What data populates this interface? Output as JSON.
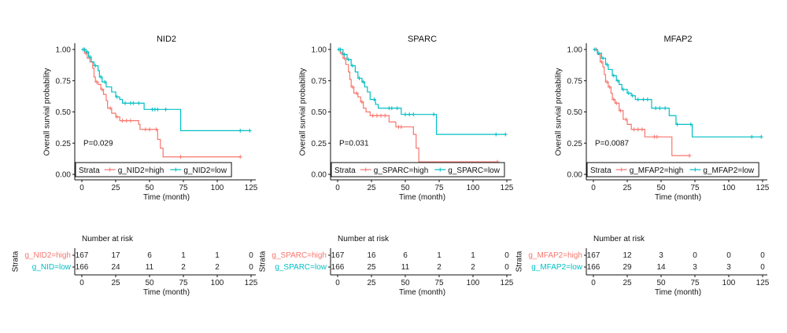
{
  "colors": {
    "high": "#F8766D",
    "low": "#00BFC4"
  },
  "chart_data": [
    {
      "type": "line",
      "subtype": "kaplan-meier",
      "title": "NID2",
      "xlabel": "Time (month)",
      "ylabel": "Overall survial probability",
      "xlim": [
        0,
        125
      ],
      "ylim": [
        0,
        1
      ],
      "xticks": [
        "0",
        "25",
        "50",
        "75",
        "100",
        "125"
      ],
      "yticks": [
        "0.00",
        "0.25",
        "0.50",
        "0.75",
        "1.00"
      ],
      "pvalue": "P=0.029",
      "legend": {
        "title": "Strata",
        "position": "bottom-left"
      },
      "series": [
        {
          "name": "g_NID2=high",
          "color_key": "high",
          "steps": [
            [
              0,
              1
            ],
            [
              2,
              0.97
            ],
            [
              4,
              0.93
            ],
            [
              6,
              0.9
            ],
            [
              8,
              0.85
            ],
            [
              9,
              0.78
            ],
            [
              10,
              0.74
            ],
            [
              12,
              0.72
            ],
            [
              14,
              0.68
            ],
            [
              16,
              0.64
            ],
            [
              18,
              0.59
            ],
            [
              19,
              0.53
            ],
            [
              22,
              0.49
            ],
            [
              25,
              0.46
            ],
            [
              28,
              0.43
            ],
            [
              42,
              0.4
            ],
            [
              43,
              0.36
            ],
            [
              56,
              0.28
            ],
            [
              58,
              0.21
            ],
            [
              60,
              0.14
            ],
            [
              117,
              0.14
            ]
          ],
          "censored": [
            3,
            11,
            15,
            21,
            26,
            30,
            33,
            36,
            47,
            50,
            55,
            73,
            117
          ]
        },
        {
          "name": "g_NID2=low",
          "color_key": "low",
          "steps": [
            [
              0,
              1
            ],
            [
              3,
              0.98
            ],
            [
              5,
              0.94
            ],
            [
              7,
              0.9
            ],
            [
              9,
              0.87
            ],
            [
              12,
              0.83
            ],
            [
              13,
              0.78
            ],
            [
              15,
              0.74
            ],
            [
              18,
              0.7
            ],
            [
              22,
              0.66
            ],
            [
              25,
              0.62
            ],
            [
              28,
              0.6
            ],
            [
              30,
              0.57
            ],
            [
              46,
              0.52
            ],
            [
              73,
              0.35
            ],
            [
              124,
              0.35
            ]
          ],
          "censored": [
            1,
            2,
            4,
            6,
            10,
            14,
            17,
            26,
            32,
            36,
            38,
            42,
            52,
            54,
            56,
            62,
            117,
            124
          ]
        }
      ],
      "risk_table": {
        "title": "Number at risk",
        "ylabel": "Strata",
        "xlabel": "Time (month)",
        "rows": [
          {
            "label": "g_NID2=high",
            "color_key": "high",
            "values": [
              "167",
              "17",
              "6",
              "1",
              "1",
              "0"
            ]
          },
          {
            "label": "g_NID=low",
            "color_key": "low",
            "values": [
              "166",
              "24",
              "11",
              "2",
              "2",
              "0"
            ]
          }
        ]
      }
    },
    {
      "type": "line",
      "subtype": "kaplan-meier",
      "title": "SPARC",
      "xlabel": "Time (month)",
      "ylabel": "Overall survial probability",
      "xlim": [
        0,
        125
      ],
      "ylim": [
        0,
        1
      ],
      "xticks": [
        "0",
        "25",
        "50",
        "75",
        "100",
        "125"
      ],
      "yticks": [
        "0.00",
        "0.25",
        "0.50",
        "0.75",
        "1.00"
      ],
      "pvalue": "P=0.031",
      "legend": {
        "title": "Strata",
        "position": "bottom-left"
      },
      "series": [
        {
          "name": "g_SPARC=high",
          "color_key": "high",
          "steps": [
            [
              0,
              1
            ],
            [
              2,
              0.97
            ],
            [
              4,
              0.93
            ],
            [
              6,
              0.88
            ],
            [
              8,
              0.82
            ],
            [
              9,
              0.76
            ],
            [
              10,
              0.7
            ],
            [
              12,
              0.65
            ],
            [
              15,
              0.62
            ],
            [
              17,
              0.58
            ],
            [
              19,
              0.53
            ],
            [
              21,
              0.5
            ],
            [
              24,
              0.47
            ],
            [
              38,
              0.42
            ],
            [
              43,
              0.38
            ],
            [
              56,
              0.32
            ],
            [
              58,
              0.21
            ],
            [
              60,
              0.1
            ],
            [
              118,
              0.1
            ]
          ],
          "censored": [
            3,
            5,
            11,
            14,
            18,
            26,
            29,
            32,
            35,
            45,
            47,
            118
          ]
        },
        {
          "name": "g_SPARC=low",
          "color_key": "low",
          "steps": [
            [
              0,
              1
            ],
            [
              4,
              0.96
            ],
            [
              7,
              0.92
            ],
            [
              10,
              0.87
            ],
            [
              13,
              0.82
            ],
            [
              15,
              0.77
            ],
            [
              18,
              0.74
            ],
            [
              20,
              0.7
            ],
            [
              22,
              0.66
            ],
            [
              24,
              0.6
            ],
            [
              28,
              0.56
            ],
            [
              30,
              0.53
            ],
            [
              47,
              0.48
            ],
            [
              73,
              0.32
            ],
            [
              124,
              0.32
            ]
          ],
          "censored": [
            1,
            2,
            5,
            8,
            11,
            16,
            19,
            27,
            38,
            40,
            44,
            50,
            53,
            56,
            71,
            117,
            124
          ]
        }
      ],
      "risk_table": {
        "title": "Number at risk",
        "ylabel": "Strata",
        "xlabel": "Time (month)",
        "rows": [
          {
            "label": "g_SPARC=high",
            "color_key": "high",
            "values": [
              "167",
              "16",
              "6",
              "1",
              "1",
              "0"
            ]
          },
          {
            "label": "g_SPARC=low",
            "color_key": "low",
            "values": [
              "166",
              "25",
              "11",
              "2",
              "2",
              "0"
            ]
          }
        ]
      }
    },
    {
      "type": "line",
      "subtype": "kaplan-meier",
      "title": "MFAP2",
      "xlabel": "Time (month)",
      "ylabel": "Overall survial probability",
      "xlim": [
        0,
        125
      ],
      "ylim": [
        0,
        1
      ],
      "xticks": [
        "0",
        "25",
        "50",
        "75",
        "100",
        "125"
      ],
      "yticks": [
        "0.00",
        "0.25",
        "0.50",
        "0.75",
        "1.00"
      ],
      "pvalue": "P=0.0087",
      "legend": {
        "title": "Strata",
        "position": "bottom-left"
      },
      "series": [
        {
          "name": "g_MFAP2=high",
          "color_key": "high",
          "steps": [
            [
              0,
              1
            ],
            [
              3,
              0.96
            ],
            [
              5,
              0.9
            ],
            [
              7,
              0.86
            ],
            [
              8,
              0.8
            ],
            [
              9,
              0.74
            ],
            [
              11,
              0.7
            ],
            [
              13,
              0.65
            ],
            [
              14,
              0.6
            ],
            [
              16,
              0.57
            ],
            [
              19,
              0.51
            ],
            [
              22,
              0.44
            ],
            [
              25,
              0.4
            ],
            [
              28,
              0.36
            ],
            [
              38,
              0.3
            ],
            [
              58,
              0.15
            ],
            [
              71,
              0.15
            ]
          ],
          "censored": [
            2,
            6,
            10,
            12,
            15,
            17,
            20,
            24,
            30,
            33,
            36,
            45,
            47,
            71
          ]
        },
        {
          "name": "g_MFAP2=low",
          "color_key": "low",
          "steps": [
            [
              0,
              1
            ],
            [
              3,
              0.97
            ],
            [
              6,
              0.93
            ],
            [
              9,
              0.88
            ],
            [
              11,
              0.84
            ],
            [
              14,
              0.79
            ],
            [
              17,
              0.75
            ],
            [
              19,
              0.72
            ],
            [
              21,
              0.68
            ],
            [
              25,
              0.65
            ],
            [
              28,
              0.63
            ],
            [
              31,
              0.6
            ],
            [
              43,
              0.53
            ],
            [
              56,
              0.47
            ],
            [
              61,
              0.4
            ],
            [
              73,
              0.3
            ],
            [
              124,
              0.3
            ]
          ],
          "censored": [
            1,
            4,
            7,
            10,
            15,
            18,
            22,
            26,
            29,
            33,
            37,
            40,
            46,
            49,
            53,
            62,
            72,
            117,
            124
          ]
        }
      ],
      "risk_table": {
        "title": "Number at risk",
        "ylabel": "Strata",
        "xlabel": "Time (month)",
        "rows": [
          {
            "label": "g_MFAP2=high",
            "color_key": "high",
            "values": [
              "167",
              "12",
              "3",
              "0",
              "0",
              "0"
            ]
          },
          {
            "label": "g_MFAP2=low",
            "color_key": "low",
            "values": [
              "166",
              "29",
              "14",
              "3",
              "3",
              "0"
            ]
          }
        ]
      }
    }
  ]
}
